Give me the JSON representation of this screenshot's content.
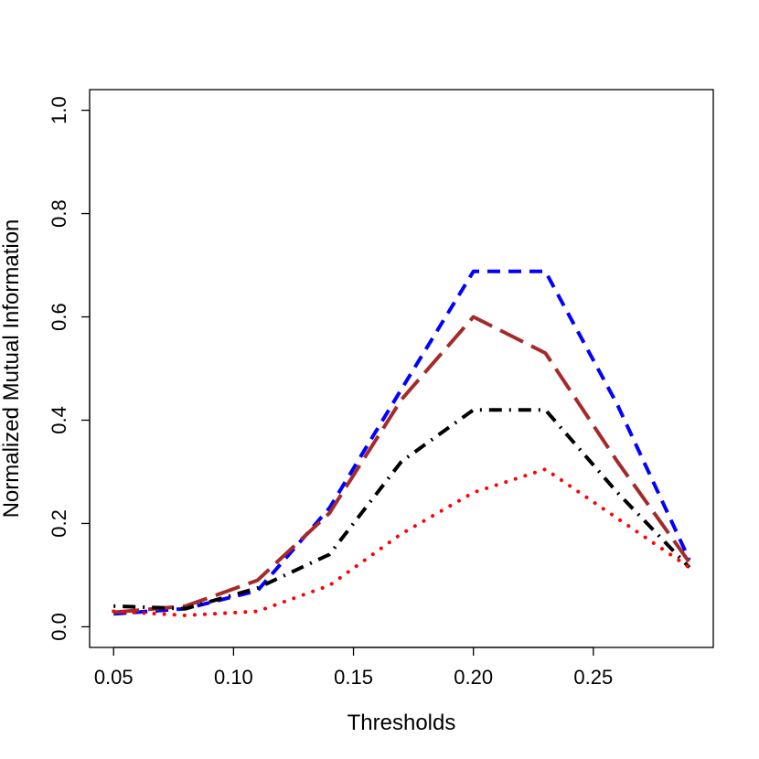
{
  "chart_data": {
    "type": "line",
    "title": "",
    "xlabel": "Thresholds",
    "ylabel": "Normalized Mutual Information",
    "xlim": [
      0.04,
      0.3
    ],
    "ylim": [
      -0.04,
      1.04
    ],
    "x_ticks": [
      0.05,
      0.1,
      0.15,
      0.2,
      0.25
    ],
    "x_tick_labels": [
      "0.05",
      "0.10",
      "0.15",
      "0.20",
      "0.25"
    ],
    "y_ticks": [
      0.0,
      0.2,
      0.4,
      0.6,
      0.8,
      1.0
    ],
    "y_tick_labels": [
      "0.0",
      "0.2",
      "0.4",
      "0.6",
      "0.8",
      "1.0"
    ],
    "grid": false,
    "legend": "none",
    "x": [
      0.05,
      0.08,
      0.11,
      0.14,
      0.17,
      0.2,
      0.23,
      0.26,
      0.29
    ],
    "series": [
      {
        "color": "#0000ff",
        "style": "short-dash",
        "values": [
          0.025,
          0.035,
          0.07,
          0.23,
          0.46,
          0.688,
          0.688,
          0.43,
          0.13
        ]
      },
      {
        "color": "#a52a2a",
        "style": "long-dash",
        "values": [
          0.028,
          0.04,
          0.09,
          0.22,
          0.44,
          0.6,
          0.53,
          0.32,
          0.125
        ]
      },
      {
        "color": "#000000",
        "style": "dot-dash",
        "values": [
          0.04,
          0.035,
          0.075,
          0.14,
          0.32,
          0.42,
          0.42,
          0.26,
          0.115
        ]
      },
      {
        "color": "#ff0000",
        "style": "dotted",
        "values": [
          0.03,
          0.022,
          0.03,
          0.08,
          0.18,
          0.26,
          0.305,
          0.21,
          0.115
        ]
      }
    ]
  }
}
